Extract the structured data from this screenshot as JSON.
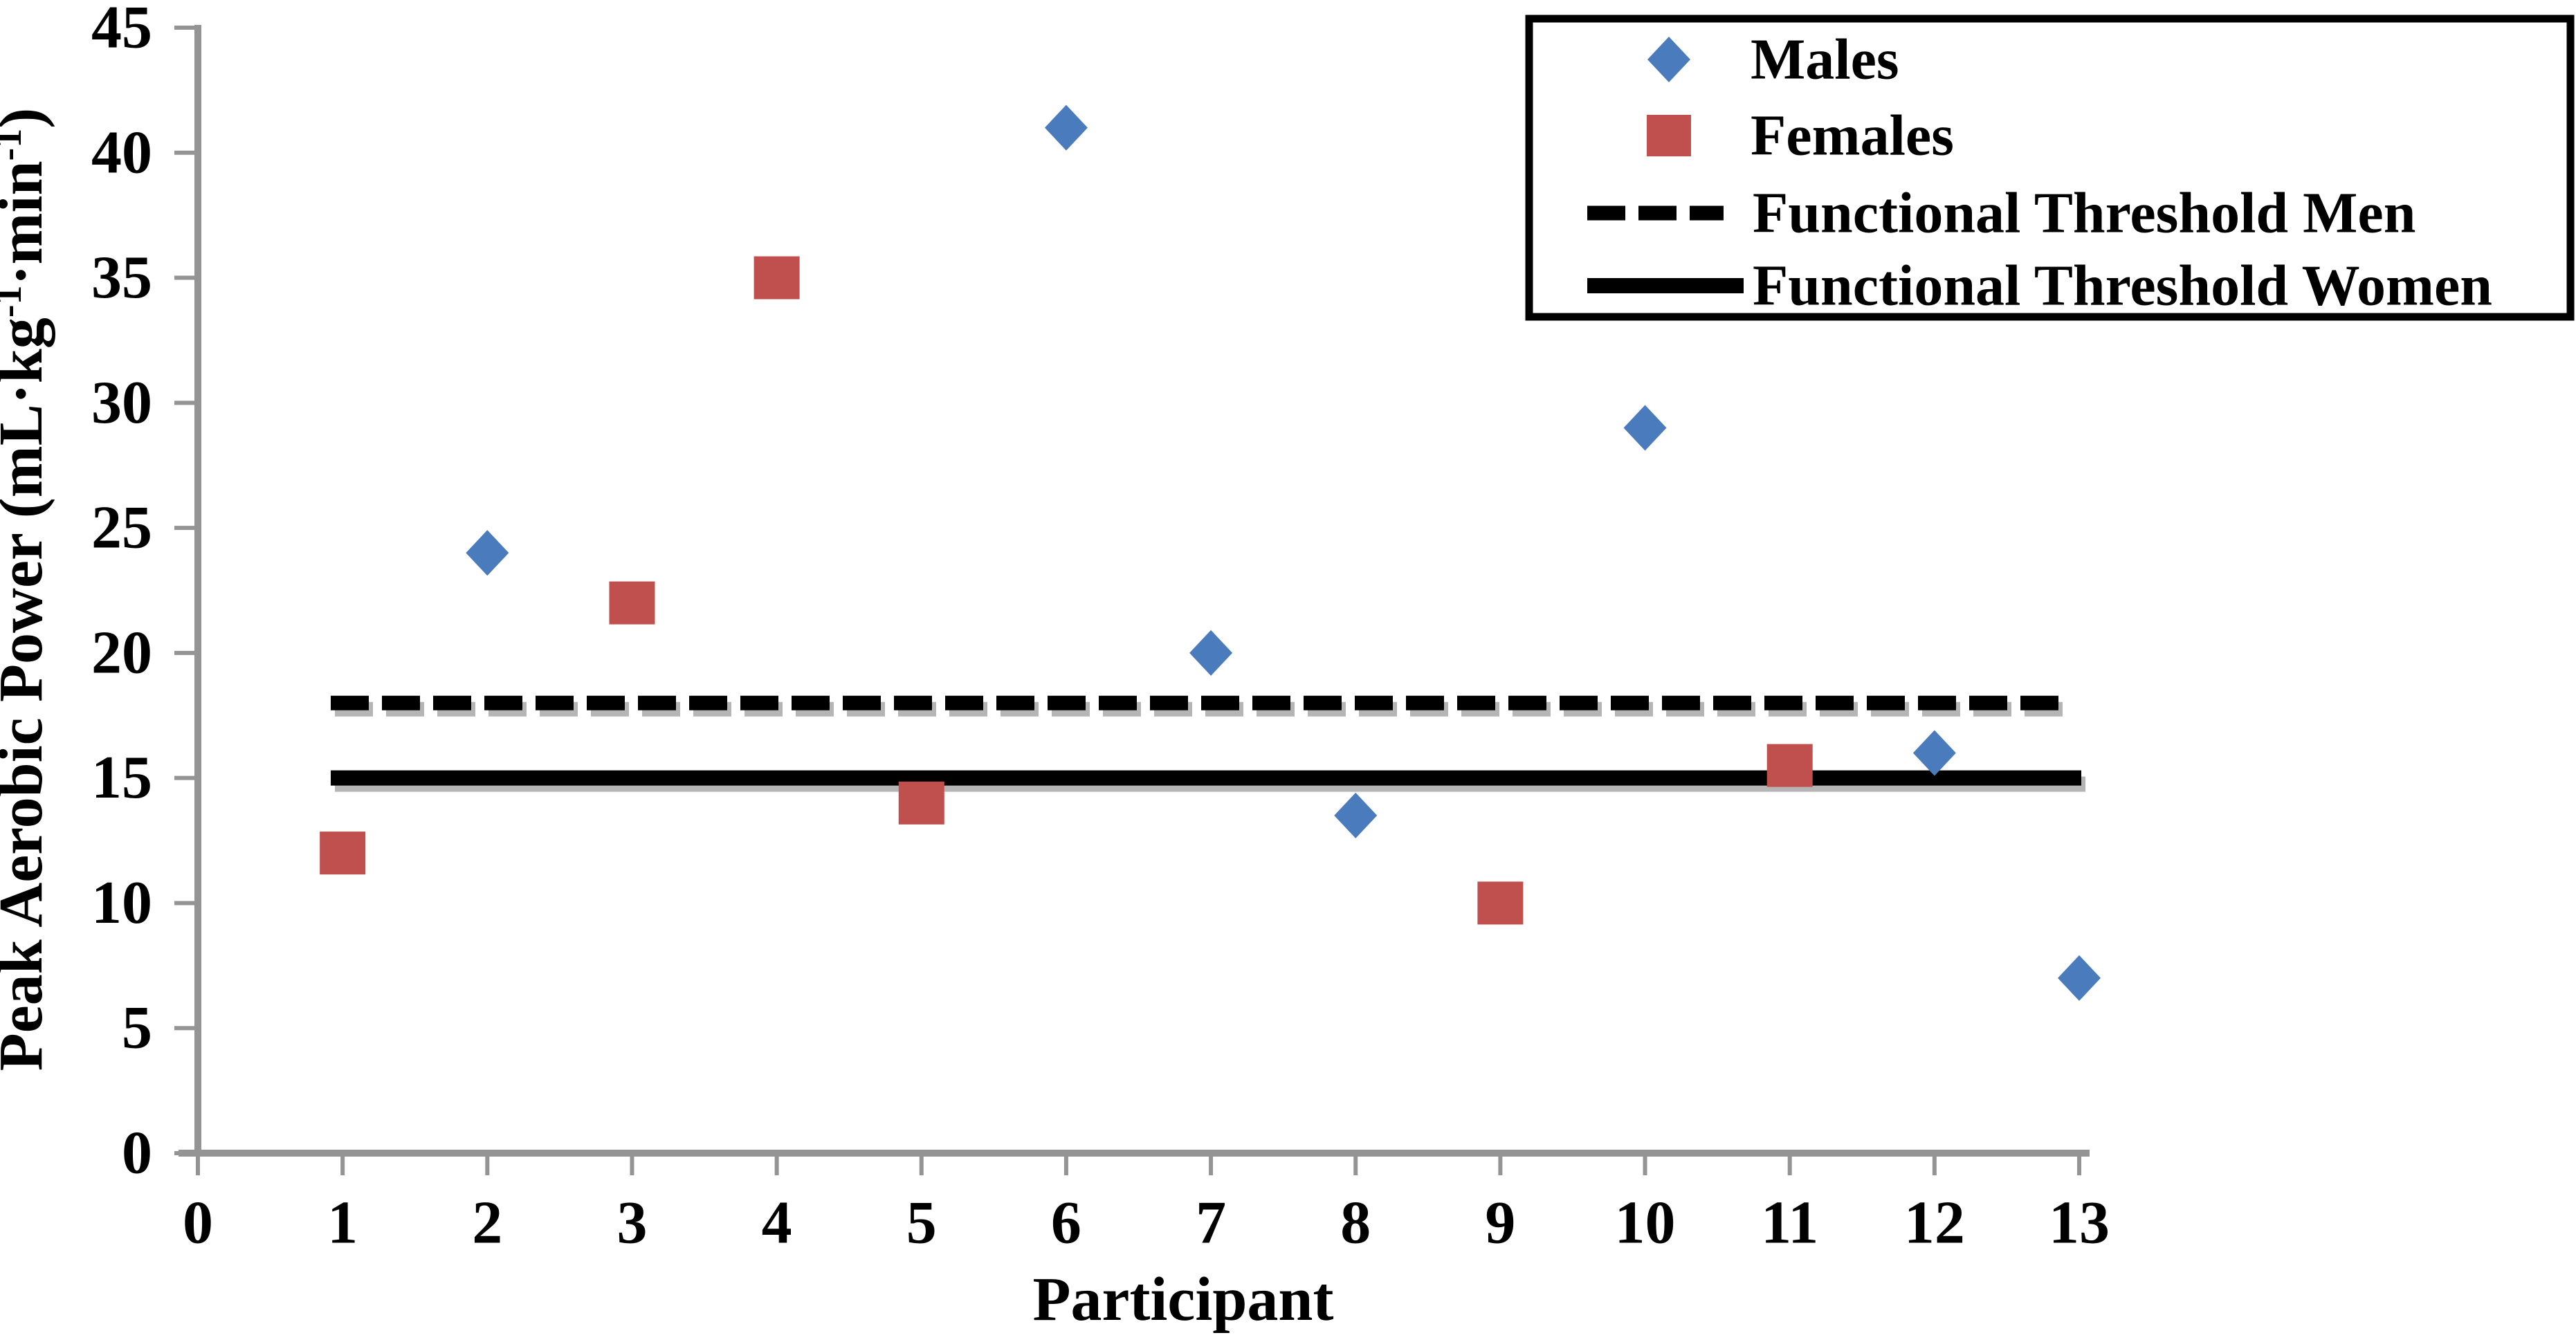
{
  "chart_data": {
    "type": "scatter",
    "title": "",
    "xlabel": "Participant",
    "ylabel": "Peak Aerobic Power (mL·kg⁻¹·min⁻¹)",
    "ylabel_parts": [
      {
        "t": "Peak Aerobic Power (mL·kg",
        "sup": false
      },
      {
        "t": "-1",
        "sup": true
      },
      {
        "t": "·min",
        "sup": false
      },
      {
        "t": "-1",
        "sup": true
      },
      {
        "t": ")",
        "sup": false
      }
    ],
    "xlim": [
      0,
      13
    ],
    "ylim": [
      0,
      45
    ],
    "x_ticks": [
      0,
      1,
      2,
      3,
      4,
      5,
      6,
      7,
      8,
      9,
      10,
      11,
      12,
      13
    ],
    "y_ticks": [
      0,
      5,
      10,
      15,
      20,
      25,
      30,
      35,
      40,
      45
    ],
    "grid": false,
    "axis_color": "#949494",
    "series": [
      {
        "name": "Males",
        "marker": "diamond",
        "color": "#4A7CBD",
        "points": [
          {
            "x": 2,
            "y": 24
          },
          {
            "x": 6,
            "y": 41
          },
          {
            "x": 7,
            "y": 20
          },
          {
            "x": 8,
            "y": 13.5
          },
          {
            "x": 10,
            "y": 29
          },
          {
            "x": 12,
            "y": 16
          },
          {
            "x": 13,
            "y": 7
          }
        ]
      },
      {
        "name": "Females",
        "marker": "square",
        "color": "#C0504D",
        "points": [
          {
            "x": 1,
            "y": 12
          },
          {
            "x": 3,
            "y": 22
          },
          {
            "x": 4,
            "y": 35
          },
          {
            "x": 5,
            "y": 14
          },
          {
            "x": 9,
            "y": 10
          },
          {
            "x": 11,
            "y": 15.5
          }
        ]
      }
    ],
    "thresholds": [
      {
        "name": "Functional Threshold Men",
        "value": 18,
        "style": "dashed",
        "color": "#000000"
      },
      {
        "name": "Functional Threshold Women",
        "value": 15,
        "style": "solid",
        "color": "#000000"
      }
    ],
    "legend": {
      "position": "top-right",
      "entries": [
        "Males",
        "Females",
        "Functional Threshold Men",
        "Functional Threshold Women"
      ]
    }
  }
}
